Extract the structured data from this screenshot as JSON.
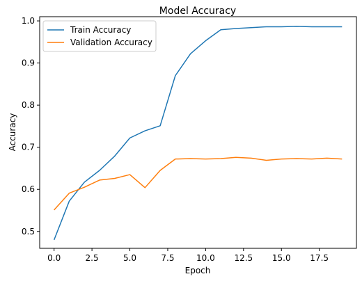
{
  "chart_data": {
    "type": "line",
    "title": "Model Accuracy",
    "xlabel": "Epoch",
    "ylabel": "Accuracy",
    "xlim": [
      -0.95,
      19.95
    ],
    "ylim": [
      0.46,
      1.01
    ],
    "xticks": [
      0.0,
      2.5,
      5.0,
      7.5,
      10.0,
      12.5,
      15.0,
      17.5
    ],
    "xtick_labels": [
      "0.0",
      "2.5",
      "5.0",
      "7.5",
      "10.0",
      "12.5",
      "15.0",
      "17.5"
    ],
    "yticks": [
      0.5,
      0.6,
      0.7,
      0.8,
      0.9,
      1.0
    ],
    "ytick_labels": [
      "0.5",
      "0.6",
      "0.7",
      "0.8",
      "0.9",
      "1.0"
    ],
    "grid": false,
    "legend_position": "top-left",
    "x": [
      0,
      1,
      2,
      3,
      4,
      5,
      6,
      7,
      8,
      9,
      10,
      11,
      12,
      13,
      14,
      15,
      16,
      17,
      18,
      19
    ],
    "series": [
      {
        "name": "Train Accuracy",
        "color": "#1f77b4",
        "values": [
          0.48,
          0.572,
          0.617,
          0.645,
          0.679,
          0.722,
          0.739,
          0.751,
          0.87,
          0.922,
          0.953,
          0.979,
          0.982,
          0.984,
          0.986,
          0.986,
          0.987,
          0.986,
          0.986,
          0.986
        ]
      },
      {
        "name": "Validation Accuracy",
        "color": "#ff7f0e",
        "values": [
          0.551,
          0.591,
          0.605,
          0.622,
          0.626,
          0.635,
          0.604,
          0.645,
          0.672,
          0.673,
          0.672,
          0.673,
          0.676,
          0.674,
          0.669,
          0.672,
          0.673,
          0.672,
          0.674,
          0.672
        ]
      }
    ]
  }
}
